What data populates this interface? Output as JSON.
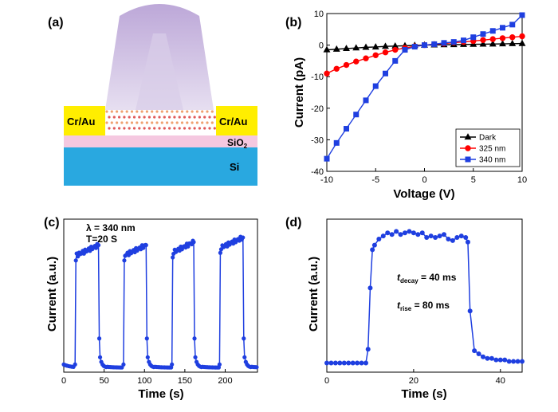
{
  "figure": {
    "labels": {
      "a": "(a)",
      "b": "(b)",
      "c": "(c)",
      "d": "(d)"
    }
  },
  "panel_a": {
    "left_contact": "Cr/Au",
    "right_contact": "Cr/Au",
    "oxide_base": "SiO",
    "oxide_sub": "2",
    "substrate": "Si",
    "colors": {
      "contact": "#ffee00",
      "oxide": "#f5c8e0",
      "substrate": "#29a8e0",
      "light": "#b9a3d6"
    }
  },
  "chart_data": [
    {
      "id": "b",
      "type": "line",
      "xlabel": "Voltage (V)",
      "ylabel": "Current (pA)",
      "xlim": [
        -10,
        10
      ],
      "ylim": [
        -40,
        10
      ],
      "xticks": [
        -10,
        -5,
        0,
        5,
        10
      ],
      "yticks": [
        10,
        0,
        -10,
        -20,
        -30,
        -40
      ],
      "xtick_labels": [
        "-10",
        "-5",
        "0",
        "5",
        "10"
      ],
      "ytick_labels": [
        "10",
        "0",
        "-10",
        "-20",
        "-30",
        "-40"
      ],
      "legend_position": "bottom-right",
      "series": [
        {
          "name": "Dark",
          "color": "#000000",
          "marker": "triangle",
          "x": [
            -10,
            -9,
            -8,
            -7,
            -6,
            -5,
            -4,
            -3,
            -2,
            -1,
            0,
            1,
            2,
            3,
            4,
            5,
            6,
            7,
            8,
            9,
            10
          ],
          "y": [
            -1.5,
            -1.3,
            -1.1,
            -0.9,
            -0.7,
            -0.6,
            -0.4,
            -0.3,
            -0.2,
            -0.1,
            0,
            0.05,
            0.1,
            0.15,
            0.2,
            0.25,
            0.3,
            0.35,
            0.4,
            0.45,
            0.5
          ]
        },
        {
          "name": "325 nm",
          "color": "#ff0000",
          "marker": "circle",
          "x": [
            -10,
            -9,
            -8,
            -7,
            -6,
            -5,
            -4,
            -3,
            -2,
            -1,
            0,
            1,
            2,
            3,
            4,
            5,
            6,
            7,
            8,
            9,
            10
          ],
          "y": [
            -9,
            -7.5,
            -6.3,
            -5.2,
            -4.2,
            -3.2,
            -2.3,
            -1.5,
            -0.9,
            -0.4,
            0,
            0.3,
            0.5,
            0.8,
            1,
            1.3,
            1.6,
            1.9,
            2.2,
            2.5,
            2.8
          ]
        },
        {
          "name": "340 nm",
          "color": "#1f3fe0",
          "marker": "square",
          "x": [
            -10,
            -9,
            -8,
            -7,
            -6,
            -5,
            -4,
            -3,
            -2,
            -1,
            0,
            1,
            2,
            3,
            4,
            5,
            6,
            7,
            8,
            9,
            10
          ],
          "y": [
            -36,
            -31,
            -26.5,
            -22,
            -17.5,
            -13,
            -9,
            -5,
            -1.5,
            -0.5,
            0,
            0.3,
            0.7,
            1,
            1.5,
            2.5,
            3.5,
            4.5,
            5.5,
            6.5,
            9.5
          ]
        }
      ]
    },
    {
      "id": "c",
      "type": "line",
      "xlabel": "Time (s)",
      "ylabel": "Current (a.u.)",
      "xlim": [
        0,
        240
      ],
      "ylim": [
        0,
        1
      ],
      "xticks": [
        0,
        50,
        100,
        150,
        200
      ],
      "xtick_labels": [
        "0",
        "50",
        "100",
        "150",
        "200"
      ],
      "annotation_lambda": "λ = 340 nm",
      "annotation_period": "T=20 S",
      "color": "#1f3fe0",
      "cycles": [
        {
          "on": 14,
          "off": 43,
          "peak": 0.83
        },
        {
          "on": 74,
          "off": 102,
          "peak": 0.83
        },
        {
          "on": 134,
          "off": 161,
          "peak": 0.85
        },
        {
          "on": 193,
          "off": 222,
          "peak": 0.88
        }
      ],
      "baseline": 0.03
    },
    {
      "id": "d",
      "type": "line",
      "xlabel": "Time (s)",
      "ylabel": "Current (a.u.)",
      "xlim": [
        0,
        45
      ],
      "ylim": [
        0,
        1
      ],
      "xticks": [
        0,
        20,
        40
      ],
      "xtick_labels": [
        "0",
        "20",
        "40"
      ],
      "annotation_decay_main": "t",
      "annotation_decay_sub": "decay",
      "annotation_decay_value": " = 40 ms",
      "annotation_rise_main": "t",
      "annotation_rise_sub": "rise",
      "annotation_rise_value": " = 80 ms",
      "color": "#1f3fe0",
      "x": [
        0,
        1,
        2,
        3,
        4,
        5,
        6,
        7,
        8,
        9,
        9.5,
        10,
        10.5,
        11,
        12,
        13,
        14,
        15,
        16,
        17,
        18,
        19,
        20,
        21,
        22,
        23,
        24,
        25,
        26,
        27,
        28,
        29,
        30,
        31,
        32,
        32.5,
        33,
        34,
        35,
        36,
        37,
        38,
        39,
        40,
        41,
        42,
        43,
        44,
        45
      ],
      "y": [
        0.06,
        0.06,
        0.06,
        0.06,
        0.06,
        0.06,
        0.06,
        0.06,
        0.06,
        0.06,
        0.15,
        0.55,
        0.8,
        0.83,
        0.87,
        0.89,
        0.91,
        0.9,
        0.92,
        0.9,
        0.91,
        0.92,
        0.91,
        0.9,
        0.91,
        0.88,
        0.89,
        0.88,
        0.89,
        0.9,
        0.87,
        0.86,
        0.88,
        0.89,
        0.88,
        0.85,
        0.4,
        0.14,
        0.12,
        0.1,
        0.09,
        0.09,
        0.08,
        0.08,
        0.08,
        0.07,
        0.07,
        0.07,
        0.07
      ]
    }
  ]
}
